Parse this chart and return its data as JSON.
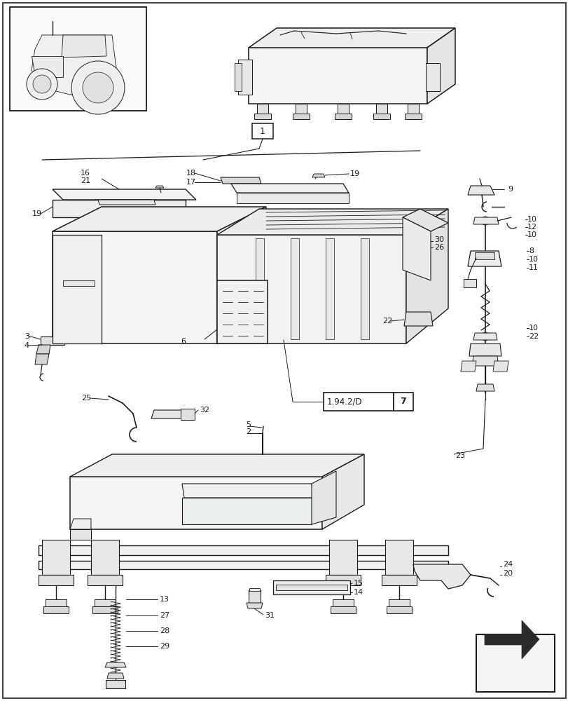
{
  "bg_color": "#ffffff",
  "lc": "#1a1a1a",
  "fig_width": 8.12,
  "fig_height": 10.0,
  "dpi": 100,
  "ref_box_text": "1.94.2/D",
  "ref_box_num": "7"
}
